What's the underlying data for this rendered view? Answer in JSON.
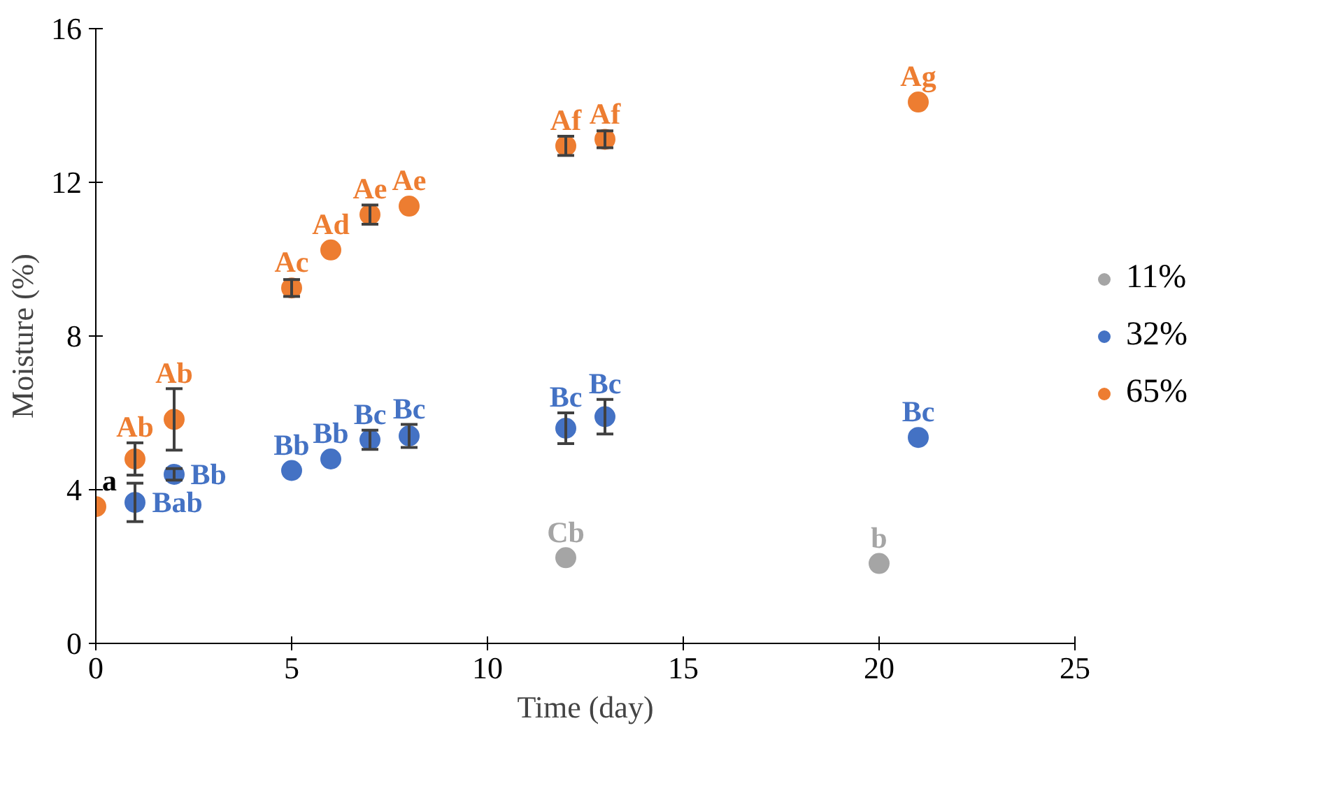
{
  "chart_data": {
    "type": "scatter",
    "xlabel": "Time (day)",
    "ylabel": "Moisture (%)",
    "xlim": [
      0,
      25
    ],
    "xticks": [
      0,
      5,
      10,
      15,
      20,
      25
    ],
    "ylim": [
      0,
      16
    ],
    "yticks": [
      0,
      4,
      8,
      12,
      16
    ],
    "grid": false,
    "legend": "right",
    "marker": "circle",
    "series": [
      {
        "name": "11%",
        "color": "#a5a5a5",
        "x": [
          12,
          20
        ],
        "values": [
          2.23,
          2.08
        ],
        "value_labels": [
          "Cb",
          "b"
        ]
      },
      {
        "name": "32%",
        "color": "#4472c4",
        "x": [
          1,
          2,
          5,
          6,
          7,
          8,
          12,
          13,
          21
        ],
        "values": [
          3.67,
          4.4,
          4.5,
          4.8,
          5.3,
          5.4,
          5.6,
          5.9,
          5.36
        ],
        "errors": [
          0.5,
          0.15,
          null,
          null,
          0.25,
          0.3,
          0.4,
          0.45,
          null
        ],
        "value_labels": [
          "Bab",
          "Bb",
          "Bb",
          "Bb",
          "Bc",
          "Bc",
          "Bc",
          "Bc",
          "Bc"
        ]
      },
      {
        "name": "65%",
        "color": "#ed7d31",
        "x": [
          0,
          1,
          2,
          5,
          6,
          7,
          8,
          12,
          13,
          21
        ],
        "values": [
          3.56,
          4.8,
          5.83,
          9.25,
          10.24,
          11.16,
          11.38,
          12.95,
          13.12,
          14.09
        ],
        "errors": [
          null,
          0.42,
          0.8,
          0.22,
          null,
          0.25,
          null,
          0.25,
          0.22,
          null
        ],
        "value_labels": [
          null,
          "Ab",
          "Ab",
          "Ac",
          "Ad",
          "Ae",
          "Ae",
          "Af",
          "Af",
          "Ag"
        ]
      }
    ],
    "annotations": [
      {
        "text": "a",
        "x": 0,
        "y": 3.56
      }
    ]
  }
}
